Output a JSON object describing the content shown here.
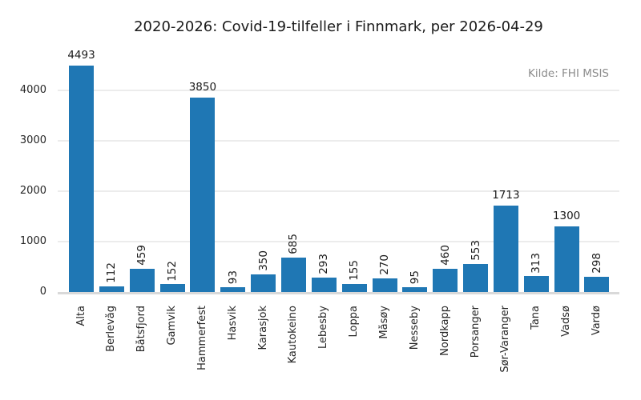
{
  "chart_data": {
    "type": "bar",
    "title": "2020-2026: Covid-19-tilfeller i Finnmark, per 2026-04-29",
    "source_note": "Kilde: FHI MSIS",
    "categories": [
      "Alta",
      "Berlevåg",
      "Båtsfjord",
      "Gamvik",
      "Hammerfest",
      "Hasvik",
      "Karasjok",
      "Kautokeino",
      "Lebesby",
      "Loppa",
      "Måsøy",
      "Nesseby",
      "Nordkapp",
      "Porsanger",
      "Sør-Varanger",
      "Tana",
      "Vadsø",
      "Vardø"
    ],
    "values": [
      4493,
      112,
      459,
      152,
      3850,
      93,
      350,
      685,
      293,
      155,
      270,
      95,
      460,
      553,
      1713,
      313,
      1300,
      298
    ],
    "xlabel": "",
    "ylabel": "",
    "y_axis": {
      "ticks": [
        0,
        1000,
        2000,
        3000,
        4000
      ],
      "range": [
        0,
        4810
      ]
    },
    "grid": "horizontal",
    "legend": "none",
    "value_labels": "above bars; values below 1000 rotated 90 degrees",
    "colors": {
      "bar": "#1f77b4",
      "grid": "#ececec",
      "axis_line": "#d9d9d9",
      "text": "#262626",
      "value_text": "#1a1a1a",
      "source_note_text": "#8c8c8c"
    }
  }
}
